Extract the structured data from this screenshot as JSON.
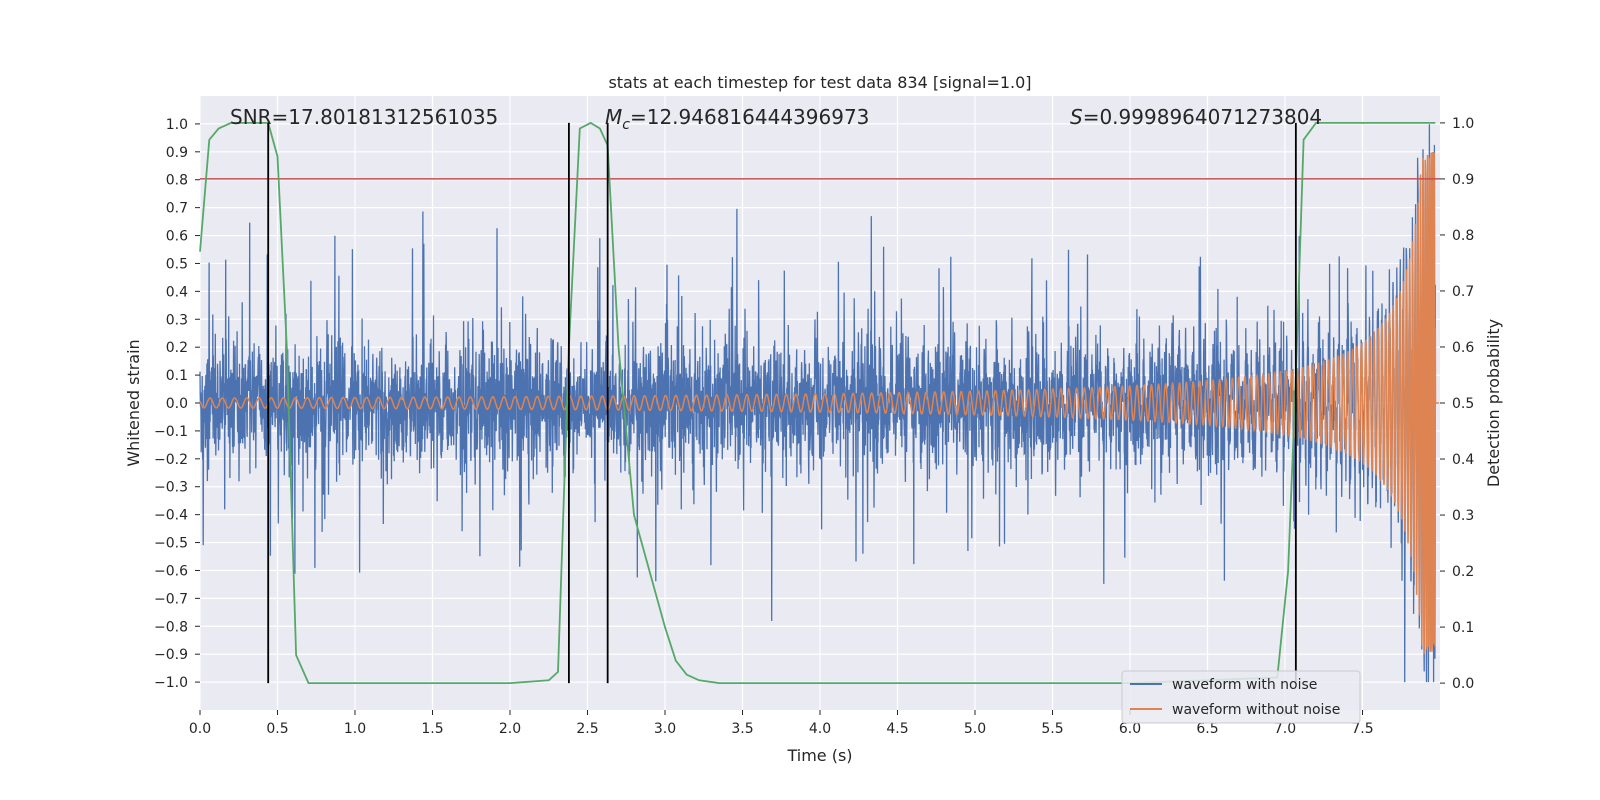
{
  "chart_data": {
    "type": "line",
    "title": "stats at each timestep for test data 834 [signal=1.0]",
    "xlabel": "Time (s)",
    "ylabel": "Whitened strain",
    "y2label": "Detection probability",
    "xlim": [
      0.0,
      8.0
    ],
    "ylim": [
      -1.1,
      1.1
    ],
    "y2lim": [
      -0.048,
      1.048
    ],
    "xticks": [
      "0.0",
      "0.5",
      "1.0",
      "1.5",
      "2.0",
      "2.5",
      "3.0",
      "3.5",
      "4.0",
      "4.5",
      "5.0",
      "5.5",
      "6.0",
      "6.5",
      "7.0",
      "7.5"
    ],
    "yticks": [
      "1.0",
      "0.9",
      "0.8",
      "0.7",
      "0.6",
      "0.5",
      "0.4",
      "0.3",
      "0.2",
      "0.1",
      "0.0",
      "−0.1",
      "−0.2",
      "−0.3",
      "−0.4",
      "−0.5",
      "−0.6",
      "−0.7",
      "−0.8",
      "−0.9",
      "−1.0"
    ],
    "y2ticks": [
      "1.0",
      "0.9",
      "0.8",
      "0.7",
      "0.6",
      "0.5",
      "0.4",
      "0.3",
      "0.2",
      "0.1",
      "0.0"
    ],
    "annotations": {
      "snr": "SNR=17.80181312561035",
      "mc_symbol": "M",
      "mc_sub": "c",
      "mc_value": "=12.946816444396973",
      "s_symbol": "S",
      "s_value": "=0.9998964071273804"
    },
    "threshold": 0.9,
    "event_lines_x": [
      0.44,
      2.38,
      2.63,
      7.07
    ],
    "series": [
      {
        "name": "waveform with noise",
        "color": "#4c72b0",
        "axis": "left",
        "description": "noisy whitened strain, amplitude approx ±0.25 with spikes to ±0.75"
      },
      {
        "name": "waveform without noise",
        "color": "#dd8452",
        "axis": "left",
        "description": "chirp signal growing from amplitude 0.02 to 0.9 near t=7.95 s"
      },
      {
        "name": "detection probability",
        "color": "#55a868",
        "axis": "right",
        "x": [
          0.0,
          0.06,
          0.12,
          0.2,
          0.3,
          0.38,
          0.44,
          0.5,
          0.56,
          0.62,
          0.7,
          1.0,
          2.0,
          2.25,
          2.31,
          2.38,
          2.45,
          2.52,
          2.58,
          2.63,
          2.7,
          2.8,
          2.9,
          3.0,
          3.07,
          3.14,
          3.22,
          3.35,
          4.0,
          5.0,
          6.0,
          6.95,
          7.02,
          7.07,
          7.12,
          7.2,
          7.5,
          7.97
        ],
        "y": [
          0.77,
          0.97,
          0.99,
          1.0,
          1.0,
          1.0,
          1.0,
          0.94,
          0.6,
          0.05,
          0.0,
          0.0,
          0.0,
          0.005,
          0.02,
          0.6,
          0.99,
          1.0,
          0.99,
          0.96,
          0.6,
          0.3,
          0.2,
          0.1,
          0.04,
          0.015,
          0.005,
          0.0,
          0.0,
          0.0,
          0.0,
          0.01,
          0.2,
          0.55,
          0.97,
          1.0,
          1.0,
          1.0
        ]
      },
      {
        "name": "threshold",
        "color": "#c44e52",
        "axis": "right",
        "x": [
          0.0,
          8.0
        ],
        "y": [
          0.9,
          0.9
        ]
      }
    ],
    "legend": {
      "position": "lower-right",
      "entries": [
        "waveform with noise",
        "waveform without noise"
      ]
    },
    "colors": {
      "background": "#eaeaf2",
      "grid": "#ffffff",
      "event_line": "#000000"
    }
  }
}
